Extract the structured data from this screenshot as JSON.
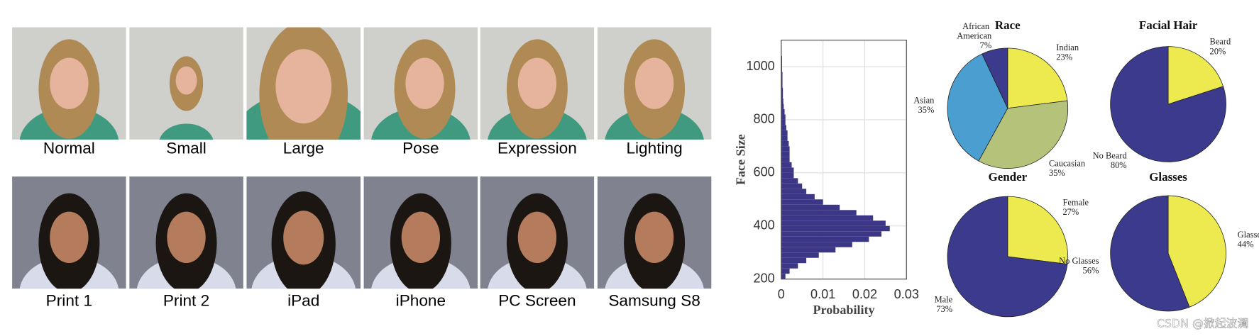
{
  "images": {
    "rows": [
      [
        "Normal",
        "Small",
        "Large",
        "Pose",
        "Expression",
        "Lighting"
      ],
      [
        "Print 1",
        "Print 2",
        "iPad",
        "iPhone",
        "PC Screen",
        "Samsung S8"
      ]
    ]
  },
  "chart_data": [
    {
      "type": "histogram",
      "orientation": "horizontal",
      "xlabel": "Probability",
      "ylabel": "Face Size",
      "bins": [
        200,
        220,
        240,
        260,
        280,
        300,
        320,
        340,
        360,
        380,
        400,
        420,
        440,
        460,
        480,
        500,
        520,
        540,
        560,
        580,
        600,
        620,
        640,
        660,
        680,
        700,
        720,
        740,
        760,
        780,
        800,
        820,
        840,
        860,
        880,
        900,
        920,
        940,
        960,
        980,
        1000,
        1020,
        1040,
        1060,
        1080
      ],
      "values": [
        0.001,
        0.002,
        0.004,
        0.006,
        0.009,
        0.013,
        0.017,
        0.021,
        0.024,
        0.026,
        0.025,
        0.022,
        0.018,
        0.014,
        0.01,
        0.008,
        0.006,
        0.005,
        0.004,
        0.003,
        0.003,
        0.0025,
        0.002,
        0.002,
        0.002,
        0.0018,
        0.0015,
        0.0015,
        0.0012,
        0.001,
        0.001,
        0.0008,
        0.0006,
        0.0005,
        0.0004,
        0.0004,
        0.0003,
        0.0003,
        0.0003,
        0.0002,
        0.0002,
        0.0002,
        0.0001,
        0.0001
      ],
      "color": "#3b3786",
      "xlim": [
        0,
        0.03
      ],
      "ylim": [
        200,
        1100
      ],
      "xticks": [
        0,
        0.01,
        0.02,
        0.03
      ],
      "yticks": [
        200,
        400,
        600,
        800,
        1000
      ],
      "grid": true
    },
    {
      "type": "pie",
      "title": "Race",
      "categories": [
        "Indian",
        "Caucasian",
        "Asian",
        "African American"
      ],
      "values": [
        23,
        35,
        35,
        7
      ],
      "value_labels": [
        "23%",
        "35%",
        "35%",
        "7%"
      ],
      "colors": [
        "#ecea4f",
        "#b5c27a",
        "#4a9fd0",
        "#3c3a8c"
      ]
    },
    {
      "type": "pie",
      "title": "Facial Hair",
      "categories": [
        "Beard",
        "No Beard"
      ],
      "values": [
        20,
        80
      ],
      "value_labels": [
        "20%",
        "80%"
      ],
      "colors": [
        "#ecea4f",
        "#3c3a8c"
      ]
    },
    {
      "type": "pie",
      "title": "Gender",
      "categories": [
        "Female",
        "Male"
      ],
      "values": [
        27,
        73
      ],
      "value_labels": [
        "27%",
        "73%"
      ],
      "colors": [
        "#ecea4f",
        "#3c3a8c"
      ]
    },
    {
      "type": "pie",
      "title": "Glasses",
      "categories": [
        "Glasses",
        "No Glasses"
      ],
      "values": [
        44,
        56
      ],
      "value_labels": [
        "44%",
        "56%"
      ],
      "colors": [
        "#ecea4f",
        "#3c3a8c"
      ]
    }
  ],
  "watermark": "CSDN @掀起波澜"
}
